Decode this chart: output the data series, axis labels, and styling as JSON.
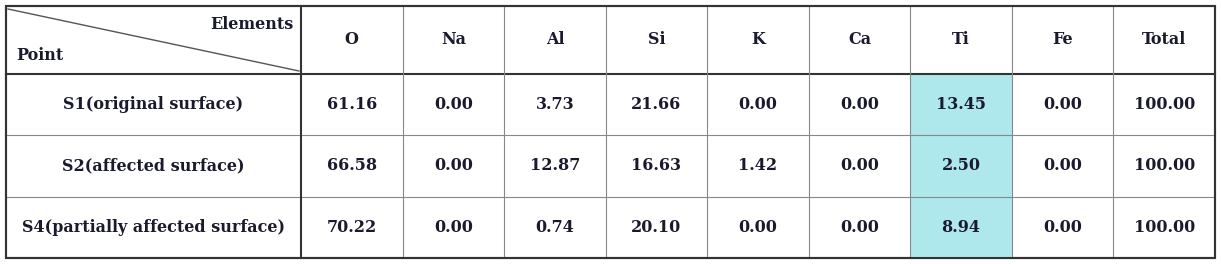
{
  "columns": [
    "O",
    "Na",
    "Al",
    "Si",
    "K",
    "Ca",
    "Ti",
    "Fe",
    "Total"
  ],
  "rows": [
    {
      "label": "S1(original surface)",
      "values": [
        "61.16",
        "0.00",
        "3.73",
        "21.66",
        "0.00",
        "0.00",
        "13.45",
        "0.00",
        "100.00"
      ]
    },
    {
      "label": "S2(affected surface)",
      "values": [
        "66.58",
        "0.00",
        "12.87",
        "16.63",
        "1.42",
        "0.00",
        "2.50",
        "0.00",
        "100.00"
      ]
    },
    {
      "label": "S4(partially affected surface)",
      "values": [
        "70.22",
        "0.00",
        "0.74",
        "20.10",
        "0.00",
        "0.00",
        "8.94",
        "0.00",
        "100.00"
      ]
    }
  ],
  "ti_col_index": 6,
  "ti_highlight_color": "#aee8ed",
  "header_label1": "Elements",
  "header_label2": "Point",
  "border_color": "#333333",
  "inner_color": "#999999",
  "text_color": "#1a1a2e",
  "font_size": 11.5,
  "figw": 12.21,
  "figh": 2.64,
  "dpi": 100
}
